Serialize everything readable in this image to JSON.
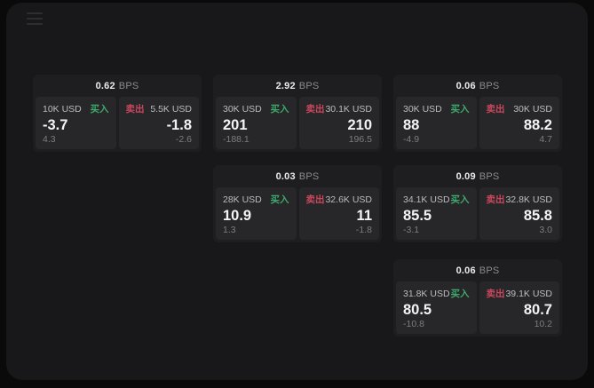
{
  "labels": {
    "buy": "买入",
    "sell": "卖出",
    "bps_unit": "BPS"
  },
  "colors": {
    "buy_green": "#3fa86b",
    "sell_red": "#c9475d",
    "window_bg": "#18181a",
    "card_bg": "#1e1e20",
    "panel_bg": "#27272a"
  },
  "menu_icon": "hamburger-menu",
  "cards": [
    {
      "bps_value": "0.62",
      "col": 1,
      "row": 1,
      "buy": {
        "amount": "10K USD",
        "price": "-3.7",
        "delta": "4.3"
      },
      "sell": {
        "amount": "5.5K USD",
        "price": "-1.8",
        "delta": "-2.6"
      }
    },
    {
      "bps_value": "2.92",
      "col": 2,
      "row": 1,
      "buy": {
        "amount": "30K USD",
        "price": "201",
        "delta": "-188.1"
      },
      "sell": {
        "amount": "30.1K USD",
        "price": "210",
        "delta": "196.5"
      }
    },
    {
      "bps_value": "0.06",
      "col": 3,
      "row": 1,
      "buy": {
        "amount": "30K USD",
        "price": "88",
        "delta": "-4.9"
      },
      "sell": {
        "amount": "30K USD",
        "price": "88.2",
        "delta": "4.7"
      }
    },
    {
      "bps_value": "0.03",
      "col": 2,
      "row": 2,
      "buy": {
        "amount": "28K USD",
        "price": "10.9",
        "delta": "1.3"
      },
      "sell": {
        "amount": "32.6K USD",
        "price": "11",
        "delta": "-1.8"
      }
    },
    {
      "bps_value": "0.09",
      "col": 3,
      "row": 2,
      "buy": {
        "amount": "34.1K USD",
        "price": "85.5",
        "delta": "-3.1"
      },
      "sell": {
        "amount": "32.8K USD",
        "price": "85.8",
        "delta": "3.0"
      }
    },
    {
      "bps_value": "0.06",
      "col": 3,
      "row": 3,
      "buy": {
        "amount": "31.8K USD",
        "price": "80.5",
        "delta": "-10.8"
      },
      "sell": {
        "amount": "39.1K USD",
        "price": "80.7",
        "delta": "10.2"
      }
    }
  ]
}
